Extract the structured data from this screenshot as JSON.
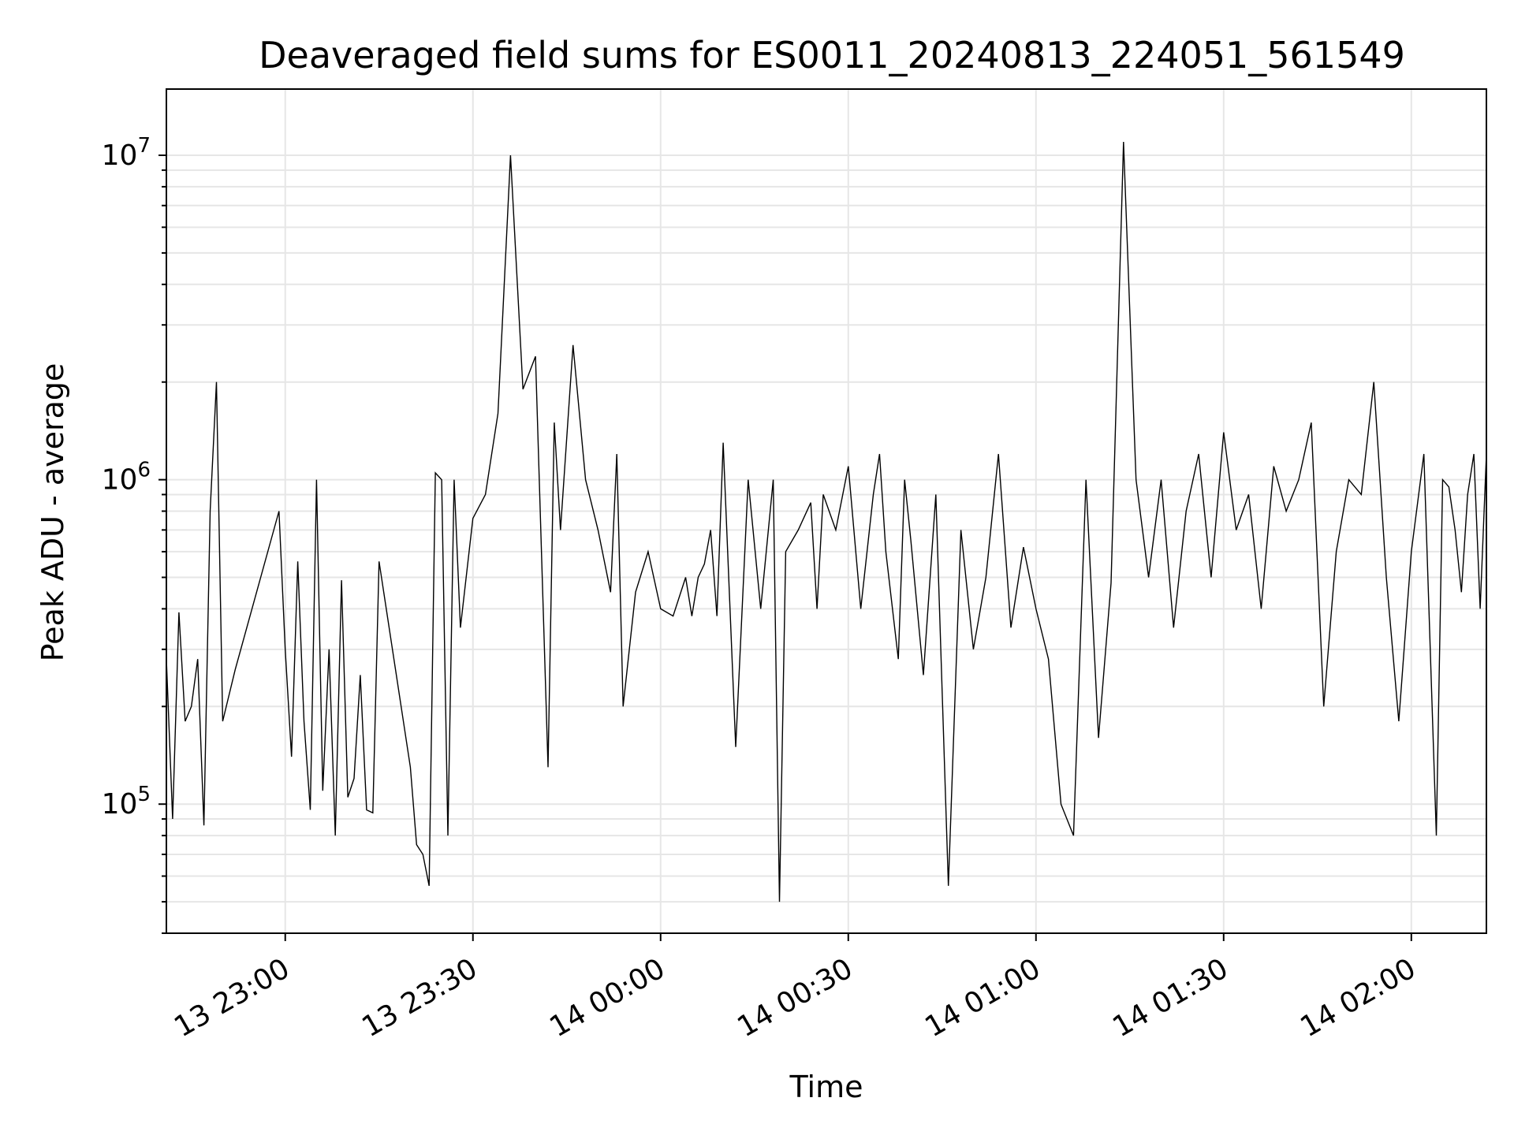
{
  "chart_data": {
    "type": "line",
    "title": "Deaveraged field sums for ES0011_20240813_224051_561549",
    "xlabel": "Time",
    "ylabel": "Peak ADU - average",
    "x_tick_labels": [
      "13 23:00",
      "13 23:30",
      "14 00:00",
      "14 00:30",
      "14 01:00",
      "14 01:30",
      "14 02:00"
    ],
    "y_tick_labels": [
      {
        "base": "10",
        "exp": "5",
        "value": 100000
      },
      {
        "base": "10",
        "exp": "6",
        "value": 1000000
      },
      {
        "base": "10",
        "exp": "7",
        "value": 10000000
      }
    ],
    "y_scale": "log",
    "ylim": [
      40000,
      16000000
    ],
    "grid": true,
    "line_color": "#000000",
    "grid_color": "#e6e6e6",
    "x_time_format": "DD HH:MM",
    "x": [
      "13 22:41",
      "13 22:42",
      "13 22:43",
      "13 22:44",
      "13 22:45",
      "13 22:46",
      "13 22:47",
      "13 22:48",
      "13 22:49",
      "13 22:50",
      "13 22:52",
      "13 22:59",
      "13 23:00",
      "13 23:01",
      "13 23:02",
      "13 23:03",
      "13 23:04",
      "13 23:05",
      "13 23:06",
      "13 23:07",
      "13 23:08",
      "13 23:09",
      "13 23:10",
      "13 23:11",
      "13 23:12",
      "13 23:13",
      "13 23:14",
      "13 23:15",
      "13 23:20",
      "13 23:21",
      "13 23:22",
      "13 23:23",
      "13 23:24",
      "13 23:25",
      "13 23:26",
      "13 23:27",
      "13 23:28",
      "13 23:30",
      "13 23:32",
      "13 23:34",
      "13 23:36",
      "13 23:38",
      "13 23:40",
      "13 23:42",
      "13 23:43",
      "13 23:44",
      "13 23:46",
      "13 23:48",
      "13 23:50",
      "13 23:52",
      "13 23:53",
      "13 23:54",
      "13 23:56",
      "13 23:58",
      "14 00:00",
      "14 00:02",
      "14 00:04",
      "14 00:05",
      "14 00:06",
      "14 00:07",
      "14 00:08",
      "14 00:09",
      "14 00:10",
      "14 00:12",
      "14 00:14",
      "14 00:16",
      "14 00:18",
      "14 00:19",
      "14 00:20",
      "14 00:22",
      "14 00:24",
      "14 00:25",
      "14 00:26",
      "14 00:28",
      "14 00:30",
      "14 00:32",
      "14 00:34",
      "14 00:35",
      "14 00:36",
      "14 00:38",
      "14 00:39",
      "14 00:40",
      "14 00:42",
      "14 00:44",
      "14 00:46",
      "14 00:48",
      "14 00:50",
      "14 00:52",
      "14 00:54",
      "14 00:56",
      "14 00:58",
      "14 01:00",
      "14 01:02",
      "14 01:04",
      "14 01:06",
      "14 01:08",
      "14 01:10",
      "14 01:12",
      "14 01:14",
      "14 01:16",
      "14 01:18",
      "14 01:20",
      "14 01:22",
      "14 01:24",
      "14 01:26",
      "14 01:28",
      "14 01:30",
      "14 01:32",
      "14 01:34",
      "14 01:36",
      "14 01:38",
      "14 01:40",
      "14 01:42",
      "14 01:44",
      "14 01:46",
      "14 01:48",
      "14 01:50",
      "14 01:52",
      "14 01:54",
      "14 01:56",
      "14 01:58",
      "14 02:00",
      "14 02:02",
      "14 02:04",
      "14 02:05",
      "14 02:06",
      "14 02:07",
      "14 02:08",
      "14 02:09",
      "14 02:10",
      "14 02:11",
      "14 02:12"
    ],
    "y": [
      280000,
      90000,
      390000,
      180000,
      200000,
      280000,
      86000,
      800000,
      2000000,
      180000,
      260000,
      800000,
      300000,
      140000,
      560000,
      180000,
      96000,
      1000000,
      110000,
      300000,
      80000,
      490000,
      105000,
      120000,
      250000,
      96000,
      94000,
      560000,
      130000,
      75000,
      70000,
      56000,
      1050000,
      1000000,
      80000,
      1000000,
      350000,
      760000,
      900000,
      1600000,
      10000000,
      1900000,
      2400000,
      130000,
      1500000,
      700000,
      2600000,
      1000000,
      700000,
      450000,
      1200000,
      200000,
      450000,
      600000,
      400000,
      380000,
      500000,
      380000,
      500000,
      550000,
      700000,
      380000,
      1300000,
      150000,
      1000000,
      400000,
      1000000,
      50000,
      600000,
      700000,
      850000,
      400000,
      900000,
      700000,
      1100000,
      400000,
      900000,
      1200000,
      600000,
      280000,
      1000000,
      650000,
      250000,
      900000,
      56000,
      700000,
      300000,
      500000,
      1200000,
      350000,
      620000,
      400000,
      280000,
      100000,
      80000,
      1000000,
      160000,
      480000,
      11000000,
      1000000,
      500000,
      1000000,
      350000,
      800000,
      1200000,
      500000,
      1400000,
      700000,
      900000,
      400000,
      1100000,
      800000,
      1000000,
      1500000,
      200000,
      600000,
      1000000,
      900000,
      2000000,
      500000,
      180000,
      600000,
      1200000,
      80000,
      1000000,
      950000,
      700000,
      450000,
      900000,
      1200000,
      400000,
      1200000
    ],
    "x_range": [
      "13 22:41",
      "14 02:12"
    ]
  }
}
